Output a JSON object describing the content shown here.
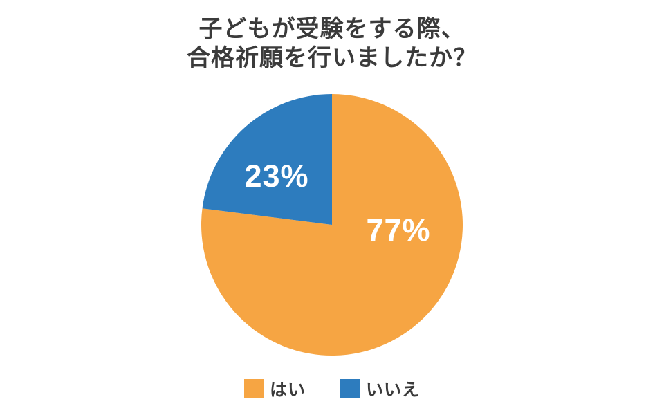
{
  "title": {
    "line1": "子どもが受験をする際、",
    "line2": "合格祈願を行いましたか？"
  },
  "chart_data": {
    "type": "pie",
    "title": "子どもが受験をする際、合格祈願を行いましたか？",
    "categories": [
      "はい",
      "いいえ"
    ],
    "values": [
      77,
      23
    ],
    "unit": "%",
    "labels": [
      "77%",
      "23%"
    ],
    "colors": [
      "#F6A543",
      "#2D7CBE"
    ],
    "label_color": "#ffffff",
    "start_angle_deg": 0,
    "direction": "clockwise",
    "legend_position": "bottom"
  }
}
